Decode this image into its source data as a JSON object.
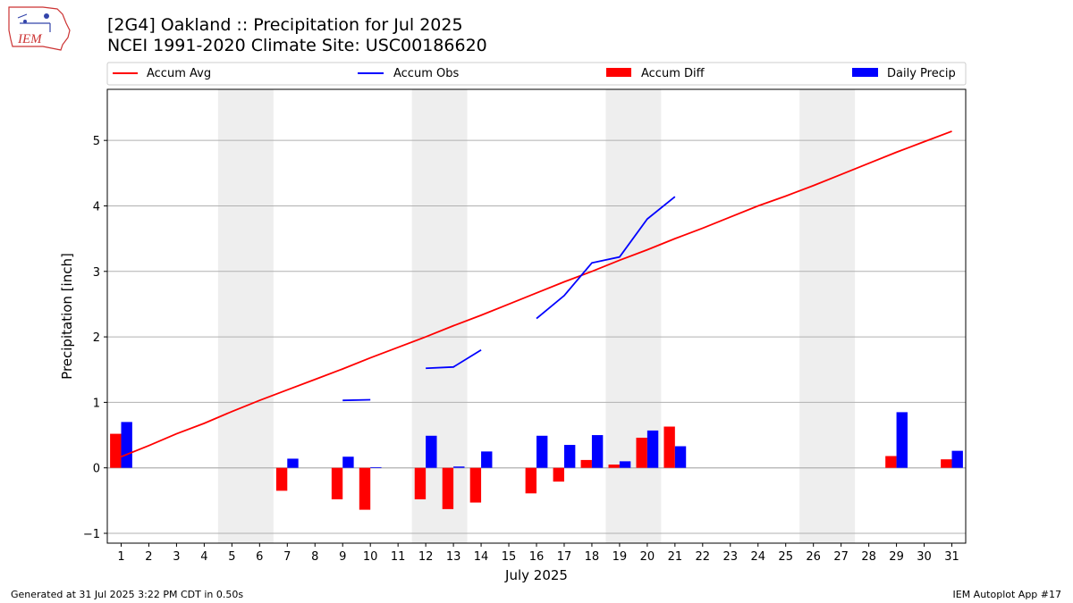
{
  "header": {
    "logo_text": "IEM",
    "title": "[2G4] Oakland :: Precipitation for Jul 2025",
    "subtitle": "NCEI 1991-2020 Climate Site: USC00186620"
  },
  "footer": {
    "generated": "Generated at 31 Jul 2025 3:22 PM CDT in 0.50s",
    "app": "IEM Autoplot App #17"
  },
  "colors": {
    "accum_avg": "#ff0000",
    "accum_obs": "#0000ff",
    "accum_diff": "#ff0000",
    "daily_precip": "#0000ff",
    "weekend_shade": "#eeeeee",
    "grid": "#b0b0b0"
  },
  "chart_data": {
    "type": "bar",
    "xlabel": "July 2025",
    "ylabel": "Precipitation [inch]",
    "xlim": [
      0.5,
      31.5
    ],
    "ylim": [
      -1.15,
      5.78
    ],
    "yticks": [
      -1,
      0,
      1,
      2,
      3,
      4,
      5
    ],
    "grid": "horizontal",
    "legend_position": "top",
    "weekend_shading": [
      [
        4.5,
        6.5
      ],
      [
        11.5,
        13.5
      ],
      [
        18.5,
        20.5
      ],
      [
        25.5,
        27.5
      ]
    ],
    "days": [
      1,
      2,
      3,
      4,
      5,
      6,
      7,
      8,
      9,
      10,
      11,
      12,
      13,
      14,
      15,
      16,
      17,
      18,
      19,
      20,
      21,
      22,
      23,
      24,
      25,
      26,
      27,
      28,
      29,
      30,
      31
    ],
    "series": [
      {
        "name": "Accum Avg",
        "kind": "line",
        "values": [
          0.17,
          0.34,
          0.52,
          0.68,
          0.86,
          1.03,
          1.19,
          1.35,
          1.51,
          1.68,
          1.84,
          2.0,
          2.17,
          2.33,
          2.5,
          2.67,
          2.84,
          3.0,
          3.17,
          3.33,
          3.5,
          3.66,
          3.83,
          4.0,
          4.15,
          4.31,
          4.48,
          4.65,
          4.82,
          4.98,
          5.14
        ]
      },
      {
        "name": "Accum Obs",
        "kind": "line",
        "values": [
          null,
          null,
          null,
          null,
          null,
          null,
          null,
          null,
          1.03,
          1.04,
          null,
          1.52,
          1.54,
          1.8,
          null,
          2.28,
          2.63,
          3.13,
          3.22,
          3.8,
          4.14,
          null,
          null,
          null,
          null,
          null,
          null,
          null,
          null,
          null,
          null
        ]
      },
      {
        "name": "Accum Diff",
        "kind": "bar",
        "values": [
          0.52,
          null,
          null,
          null,
          null,
          null,
          -0.35,
          null,
          -0.48,
          -0.64,
          null,
          -0.48,
          -0.63,
          -0.53,
          null,
          -0.39,
          -0.21,
          0.12,
          0.05,
          0.46,
          0.63,
          null,
          null,
          null,
          null,
          null,
          null,
          null,
          0.18,
          null,
          0.13
        ]
      },
      {
        "name": "Daily Precip",
        "kind": "bar",
        "values": [
          0.7,
          null,
          null,
          null,
          null,
          null,
          0.14,
          null,
          0.17,
          0.01,
          null,
          0.49,
          0.02,
          0.25,
          null,
          0.49,
          0.35,
          0.5,
          0.1,
          0.57,
          0.33,
          null,
          null,
          null,
          null,
          null,
          null,
          null,
          0.85,
          null,
          0.26
        ]
      }
    ]
  }
}
